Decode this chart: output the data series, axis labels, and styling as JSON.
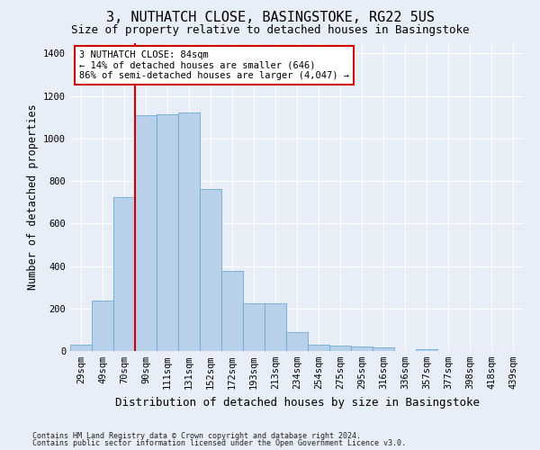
{
  "title": "3, NUTHATCH CLOSE, BASINGSTOKE, RG22 5US",
  "subtitle": "Size of property relative to detached houses in Basingstoke",
  "xlabel": "Distribution of detached houses by size in Basingstoke",
  "ylabel": "Number of detached properties",
  "footnote1": "Contains HM Land Registry data © Crown copyright and database right 2024.",
  "footnote2": "Contains public sector information licensed under the Open Government Licence v3.0.",
  "categories": [
    "29sqm",
    "49sqm",
    "70sqm",
    "90sqm",
    "111sqm",
    "131sqm",
    "152sqm",
    "172sqm",
    "193sqm",
    "213sqm",
    "234sqm",
    "254sqm",
    "275sqm",
    "295sqm",
    "316sqm",
    "336sqm",
    "357sqm",
    "377sqm",
    "398sqm",
    "418sqm",
    "439sqm"
  ],
  "values": [
    30,
    235,
    725,
    1110,
    1115,
    1120,
    760,
    375,
    225,
    225,
    90,
    30,
    25,
    22,
    15,
    0,
    10,
    0,
    0,
    0,
    0
  ],
  "bar_color": "#b8d0ea",
  "bar_edge_color": "#6aaad4",
  "vline_color": "#cc0000",
  "annotation_text": "3 NUTHATCH CLOSE: 84sqm\n← 14% of detached houses are smaller (646)\n86% of semi-detached houses are larger (4,047) →",
  "annotation_box_edgecolor": "#cc0000",
  "ylim": [
    0,
    1450
  ],
  "yticks": [
    0,
    200,
    400,
    600,
    800,
    1000,
    1200,
    1400
  ],
  "background_color": "#e8eef8",
  "grid_color": "#ffffff",
  "title_fontsize": 11,
  "subtitle_fontsize": 9,
  "xlabel_fontsize": 9,
  "ylabel_fontsize": 8.5,
  "tick_fontsize": 7.5,
  "footnote_fontsize": 6
}
